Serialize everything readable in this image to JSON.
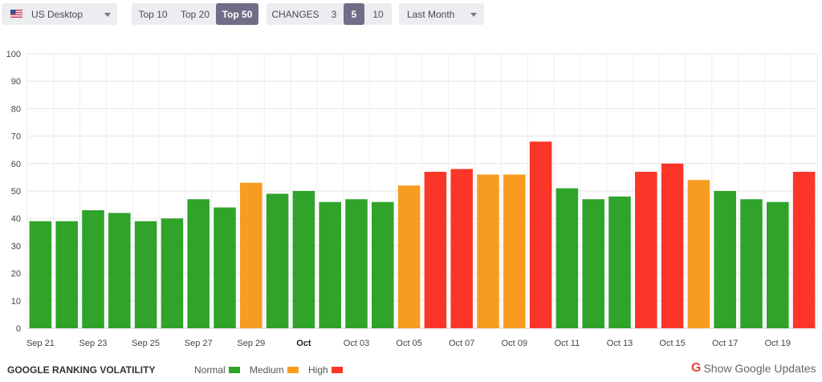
{
  "toolbar": {
    "region": "US Desktop",
    "top_options": [
      "Top 10",
      "Top 20",
      "Top 50"
    ],
    "top_selected": "Top 50",
    "changes_label": "CHANGES",
    "changes_options": [
      "3",
      "5",
      "10"
    ],
    "changes_selected": "5",
    "period": "Last Month"
  },
  "footer": {
    "title": "GOOGLE RANKING VOLATILITY",
    "legend": [
      {
        "label": "Normal",
        "color": "#2fa32a"
      },
      {
        "label": "Medium",
        "color": "#f79c20"
      },
      {
        "label": "High",
        "color": "#fb3628"
      }
    ],
    "updates_label": "Show Google Updates",
    "google_icon": "google-g-icon"
  },
  "chart_data": {
    "type": "bar",
    "title": "",
    "xlabel": "",
    "ylabel": "",
    "ylim": [
      0,
      100
    ],
    "yticks": [
      0,
      10,
      20,
      30,
      40,
      50,
      60,
      70,
      80,
      90,
      100
    ],
    "grid": true,
    "categories": [
      "Sep 21",
      "Sep 22",
      "Sep 23",
      "Sep 24",
      "Sep 25",
      "Sep 26",
      "Sep 27",
      "Sep 28",
      "Sep 29",
      "Sep 30",
      "Oct 01",
      "Oct 02",
      "Oct 03",
      "Oct 04",
      "Oct 05",
      "Oct 06",
      "Oct 07",
      "Oct 08",
      "Oct 09",
      "Oct 10",
      "Oct 11",
      "Oct 12",
      "Oct 13",
      "Oct 14",
      "Oct 15",
      "Oct 16",
      "Oct 17",
      "Oct 18",
      "Oct 19",
      "Oct 20"
    ],
    "values": [
      39,
      39,
      43,
      42,
      39,
      40,
      47,
      44,
      53,
      49,
      50,
      46,
      47,
      46,
      52,
      57,
      58,
      56,
      56,
      68,
      51,
      47,
      48,
      57,
      60,
      54,
      50,
      47,
      46,
      57
    ],
    "levels": [
      "Normal",
      "Normal",
      "Normal",
      "Normal",
      "Normal",
      "Normal",
      "Normal",
      "Normal",
      "Medium",
      "Normal",
      "Normal",
      "Normal",
      "Normal",
      "Normal",
      "Medium",
      "High",
      "High",
      "Medium",
      "Medium",
      "High",
      "Normal",
      "Normal",
      "Normal",
      "High",
      "High",
      "Medium",
      "Normal",
      "Normal",
      "Normal",
      "High"
    ],
    "colors": {
      "Normal": "#2fa32a",
      "Medium": "#f79c20",
      "High": "#fb3628"
    },
    "tick_labels": [
      {
        "index": 0,
        "label": "Sep 21",
        "bold": false
      },
      {
        "index": 2,
        "label": "Sep 23",
        "bold": false
      },
      {
        "index": 4,
        "label": "Sep 25",
        "bold": false
      },
      {
        "index": 6,
        "label": "Sep 27",
        "bold": false
      },
      {
        "index": 8,
        "label": "Sep 29",
        "bold": false
      },
      {
        "index": 10,
        "label": "Oct",
        "bold": true
      },
      {
        "index": 12,
        "label": "Oct 03",
        "bold": false
      },
      {
        "index": 14,
        "label": "Oct 05",
        "bold": false
      },
      {
        "index": 16,
        "label": "Oct 07",
        "bold": false
      },
      {
        "index": 18,
        "label": "Oct 09",
        "bold": false
      },
      {
        "index": 20,
        "label": "Oct 11",
        "bold": false
      },
      {
        "index": 22,
        "label": "Oct 13",
        "bold": false
      },
      {
        "index": 24,
        "label": "Oct 15",
        "bold": false
      },
      {
        "index": 26,
        "label": "Oct 17",
        "bold": false
      },
      {
        "index": 28,
        "label": "Oct 19",
        "bold": false
      }
    ]
  }
}
